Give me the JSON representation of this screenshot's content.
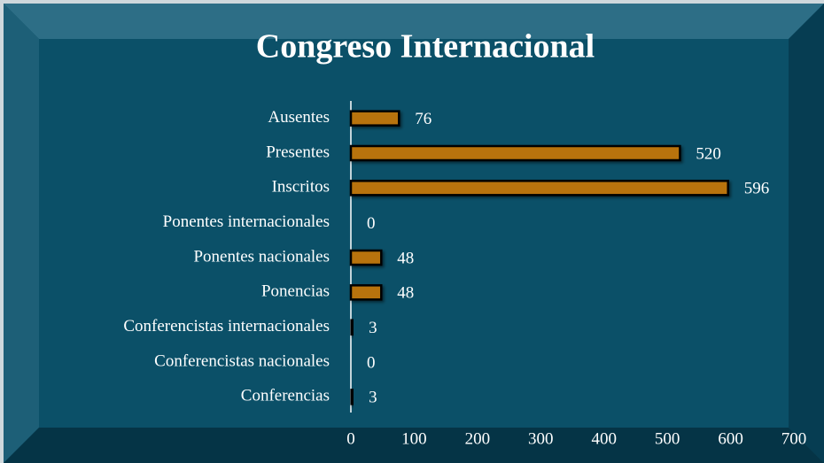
{
  "chart_data": {
    "type": "bar",
    "orientation": "horizontal",
    "title": "Congreso Internacional",
    "categories": [
      "Ausentes",
      "Presentes",
      "Inscritos",
      "Ponentes internacionales",
      "Ponentes nacionales",
      "Ponencias",
      "Conferencistas internacionales",
      "Conferencistas nacionales",
      "Conferencias"
    ],
    "values": [
      76,
      520,
      596,
      0,
      48,
      48,
      3,
      0,
      3
    ],
    "color": "#b8730c",
    "xlim": [
      0,
      700
    ],
    "xticks": [
      0,
      100,
      200,
      300,
      400,
      500,
      600,
      700
    ],
    "grid": false
  }
}
